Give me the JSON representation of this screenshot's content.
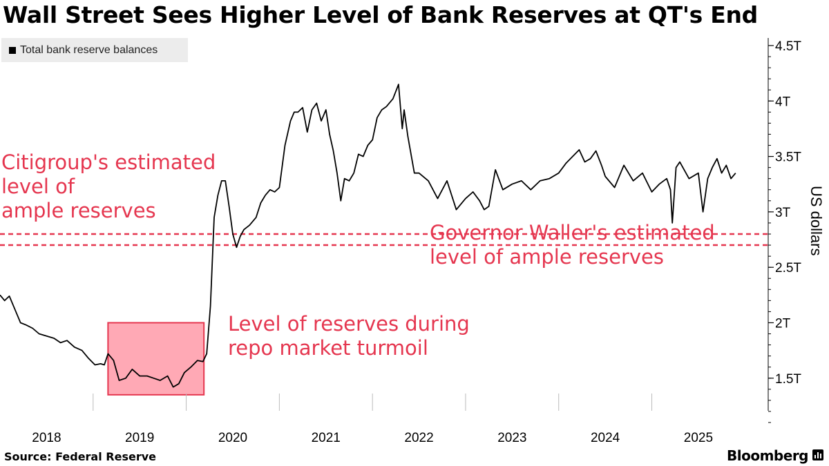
{
  "header": {
    "title": "Wall Street Sees Higher Level of Bank Reserves at QT's End"
  },
  "legend": {
    "label": "Total bank reserve balances"
  },
  "annotations": {
    "citigroup": "Citigroup's estimated\nlevel of\nample reserves",
    "waller": "Governor Waller's estimated\nlevel of ample reserves",
    "repo": "Level of reserves during\nrepo market turmoil"
  },
  "footer": {
    "source": "Source: Federal Reserve",
    "brand": "Bloomberg"
  },
  "colors": {
    "line": "#000000",
    "accent": "#e5364f",
    "box_fill": "#ffa9b5",
    "box_stroke": "#e5364f"
  },
  "chart_data": {
    "type": "line",
    "title": "Wall Street Sees Higher Level of Bank Reserves at QT's End",
    "xlabel": "",
    "ylabel": "US dollars",
    "ylim": [
      1.1,
      4.5
    ],
    "xlim": [
      2017.5,
      2025.75
    ],
    "ytick_values": [
      1.5,
      2,
      2.5,
      3,
      3.5,
      4,
      4.5
    ],
    "ytick_labels": [
      "1.5T",
      "2T",
      "2.5T",
      "3T",
      "3.5T",
      "4T",
      "4.5T"
    ],
    "xtick_values": [
      2018,
      2019,
      2020,
      2021,
      2022,
      2023,
      2024,
      2025
    ],
    "xtick_labels": [
      "2018",
      "2019",
      "2020",
      "2021",
      "2022",
      "2023",
      "2024",
      "2025"
    ],
    "year_dividers": [
      2018.5,
      2019.5,
      2020.5,
      2021.5,
      2022.5,
      2023.5,
      2024.5
    ],
    "grid": false,
    "legend": "top-left",
    "reference_lines": [
      {
        "name": "Citigroup estimate",
        "value": 2.8
      },
      {
        "name": "Governor Waller estimate",
        "value": 2.7
      }
    ],
    "highlight_region": {
      "name": "repo market turmoil",
      "x": [
        2018.66,
        2019.69
      ],
      "y": [
        1.35,
        2.0
      ]
    },
    "series": [
      {
        "name": "Total bank reserve balances",
        "x": [
          2017.5,
          2017.55,
          2017.6,
          2017.66,
          2017.72,
          2017.78,
          2017.85,
          2017.92,
          2018.0,
          2018.08,
          2018.15,
          2018.22,
          2018.3,
          2018.38,
          2018.45,
          2018.52,
          2018.58,
          2018.62,
          2018.66,
          2018.72,
          2018.78,
          2018.85,
          2018.92,
          2019.0,
          2019.08,
          2019.15,
          2019.22,
          2019.3,
          2019.36,
          2019.42,
          2019.48,
          2019.55,
          2019.62,
          2019.68,
          2019.72,
          2019.76,
          2019.8,
          2019.84,
          2019.88,
          2019.92,
          2019.96,
          2020.0,
          2020.04,
          2020.08,
          2020.12,
          2020.18,
          2020.25,
          2020.3,
          2020.35,
          2020.4,
          2020.45,
          2020.5,
          2020.56,
          2020.62,
          2020.66,
          2020.7,
          2020.75,
          2020.8,
          2020.85,
          2020.9,
          2020.95,
          2021.0,
          2021.04,
          2021.08,
          2021.12,
          2021.16,
          2021.2,
          2021.25,
          2021.3,
          2021.35,
          2021.4,
          2021.45,
          2021.5,
          2021.55,
          2021.6,
          2021.65,
          2021.72,
          2021.78,
          2021.82,
          2021.84,
          2021.88,
          2021.95,
          2022.0,
          2022.1,
          2022.2,
          2022.3,
          2022.4,
          2022.5,
          2022.58,
          2022.65,
          2022.7,
          2022.75,
          2022.82,
          2022.9,
          2023.0,
          2023.1,
          2023.2,
          2023.3,
          2023.4,
          2023.5,
          2023.58,
          2023.65,
          2023.72,
          2023.78,
          2023.84,
          2023.9,
          2023.96,
          2024.0,
          2024.1,
          2024.2,
          2024.3,
          2024.4,
          2024.5,
          2024.58,
          2024.66,
          2024.7,
          2024.72,
          2024.76,
          2024.8,
          2024.9,
          2025.0,
          2025.05,
          2025.1,
          2025.15,
          2025.2,
          2025.25,
          2025.3,
          2025.35,
          2025.4
        ],
        "values": [
          2.25,
          2.2,
          2.24,
          2.12,
          2.0,
          1.98,
          1.95,
          1.9,
          1.88,
          1.86,
          1.82,
          1.84,
          1.78,
          1.75,
          1.68,
          1.62,
          1.63,
          1.62,
          1.72,
          1.66,
          1.48,
          1.5,
          1.58,
          1.52,
          1.52,
          1.5,
          1.48,
          1.52,
          1.42,
          1.45,
          1.55,
          1.6,
          1.66,
          1.65,
          1.72,
          2.15,
          2.95,
          3.15,
          3.28,
          3.28,
          3.05,
          2.8,
          2.68,
          2.78,
          2.84,
          2.88,
          2.95,
          3.08,
          3.15,
          3.2,
          3.18,
          3.22,
          3.6,
          3.82,
          3.9,
          3.9,
          3.94,
          3.72,
          3.92,
          3.98,
          3.82,
          3.92,
          3.7,
          3.55,
          3.35,
          3.1,
          3.3,
          3.28,
          3.35,
          3.52,
          3.5,
          3.6,
          3.65,
          3.85,
          3.92,
          3.95,
          4.02,
          4.15,
          3.75,
          3.92,
          3.68,
          3.35,
          3.35,
          3.28,
          3.12,
          3.28,
          3.02,
          3.12,
          3.18,
          3.1,
          3.02,
          3.05,
          3.38,
          3.2,
          3.25,
          3.28,
          3.2,
          3.28,
          3.3,
          3.35,
          3.44,
          3.5,
          3.56,
          3.45,
          3.48,
          3.55,
          3.42,
          3.32,
          3.22,
          3.42,
          3.28,
          3.35,
          3.18,
          3.25,
          3.3,
          3.2,
          2.9,
          3.4,
          3.45,
          3.3,
          3.35,
          3.0,
          3.3,
          3.4,
          3.48,
          3.35,
          3.42,
          3.3,
          3.35
        ]
      }
    ]
  }
}
